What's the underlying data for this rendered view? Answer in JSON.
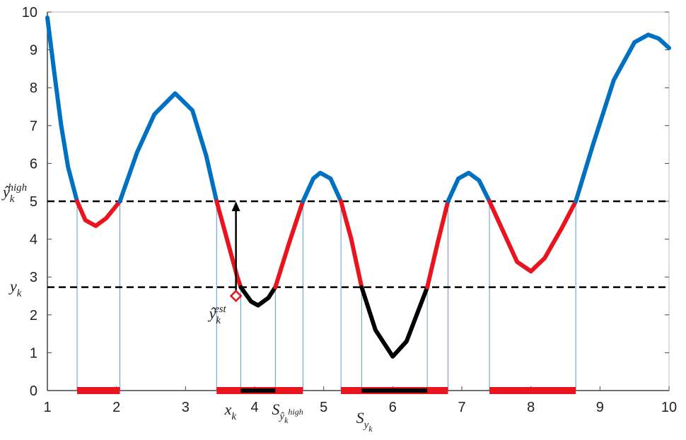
{
  "chart_data": {
    "type": "line",
    "x": [
      1.0,
      1.1,
      1.2,
      1.3,
      1.43,
      1.55,
      1.7,
      1.85,
      2.05,
      2.3,
      2.55,
      2.85,
      3.1,
      3.3,
      3.45,
      3.6,
      3.75,
      3.8,
      3.95,
      4.05,
      4.2,
      4.3,
      4.5,
      4.7,
      4.85,
      4.95,
      5.1,
      5.25,
      5.4,
      5.55,
      5.75,
      6.0,
      6.2,
      6.5,
      6.65,
      6.8,
      6.95,
      7.1,
      7.25,
      7.4,
      7.6,
      7.8,
      8.0,
      8.2,
      8.45,
      8.65,
      8.9,
      9.2,
      9.5,
      9.7,
      9.85,
      10.0
    ],
    "series": [
      {
        "values": [
          9.85,
          8.4,
          7.0,
          5.9,
          5.0,
          4.5,
          4.35,
          4.55,
          5.0,
          6.3,
          7.3,
          7.85,
          7.4,
          6.2,
          5.0,
          4.0,
          3.0,
          2.73,
          2.35,
          2.25,
          2.45,
          2.73,
          3.9,
          5.0,
          5.6,
          5.75,
          5.6,
          5.0,
          4.0,
          2.73,
          1.6,
          0.9,
          1.3,
          2.73,
          3.9,
          5.0,
          5.6,
          5.75,
          5.55,
          5.0,
          4.2,
          3.4,
          3.15,
          3.5,
          4.3,
          5.0,
          6.5,
          8.2,
          9.2,
          9.4,
          9.3,
          9.05
        ]
      }
    ],
    "color_above": "#0070c0",
    "color_between": "#e8141e",
    "color_below": "#000000",
    "thresholds": [
      {
        "value": 5,
        "label": {
          "base": "ŷ",
          "sub": "k",
          "sup": "high"
        }
      },
      {
        "value": 2.73,
        "label": {
          "base": "y",
          "sub": "k"
        }
      }
    ],
    "intervals": [
      {
        "range": [
          1.43,
          2.05
        ],
        "color": "#e8141e"
      },
      {
        "range": [
          3.45,
          4.7
        ],
        "color": "#e8141e"
      },
      {
        "range": [
          5.25,
          6.8
        ],
        "color": "#e8141e"
      },
      {
        "range": [
          7.4,
          8.65
        ],
        "color": "#e8141e"
      },
      {
        "range": [
          3.8,
          4.3
        ],
        "color": "#000000"
      },
      {
        "range": [
          5.55,
          6.5
        ],
        "color": "#000000"
      }
    ],
    "estimate": {
      "x": 3.73,
      "y": 2.5,
      "label": {
        "base": "ŷ",
        "sub": "k",
        "sup": "est"
      },
      "x_label": {
        "base": "x",
        "sub": "k"
      }
    },
    "set_labels": [
      {
        "base": "S",
        "sub": "ŷ",
        "subsub": "k",
        "subsup": "high",
        "color": "#e8141e"
      },
      {
        "base": "S",
        "sub": "y",
        "subsub": "k",
        "color": "#1f4e79"
      }
    ],
    "xlim": [
      1,
      10
    ],
    "ylim": [
      0,
      10
    ],
    "xticks": [
      1,
      2,
      3,
      4,
      5,
      6,
      7,
      8,
      9,
      10
    ],
    "yticks": [
      0,
      1,
      2,
      3,
      4,
      5,
      6,
      7,
      8,
      9,
      10
    ]
  }
}
